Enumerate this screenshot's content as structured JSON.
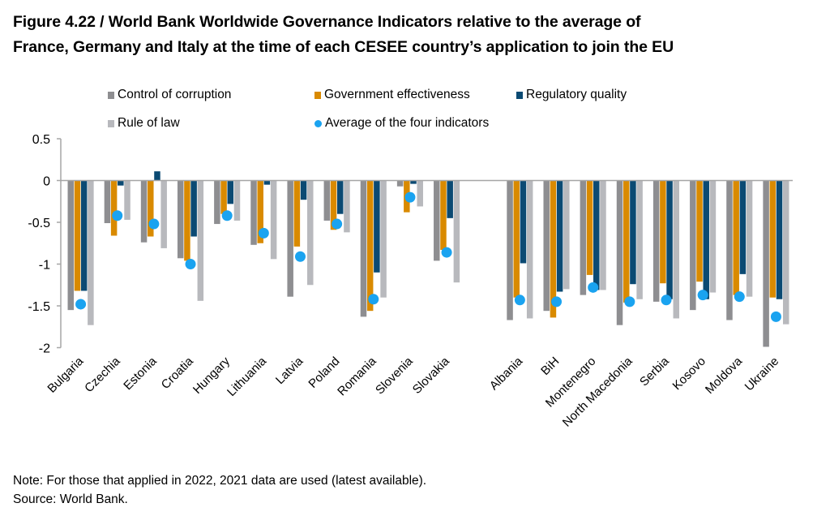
{
  "chart_data": {
    "type": "bar",
    "title": "Figure 4.22 / World Bank Worldwide Governance Indicators relative to the average of France, Germany and Italy at the time of each CESEE country’s application to join the EU",
    "title_lines": [
      "Figure 4.22 / World Bank Worldwide Governance Indicators relative to the average of",
      "France, Germany and Italy at the time of each CESEE country’s application to join the EU"
    ],
    "xlabel": "",
    "ylabel": "",
    "ylim": [
      -2,
      0.5
    ],
    "yticks": [
      0.5,
      0,
      -0.5,
      -1,
      -1.5,
      -2
    ],
    "ytick_labels": [
      "0.5",
      "0",
      "-0.5",
      "-1",
      "-1.5",
      "-2"
    ],
    "grid": false,
    "legend_position": "top",
    "categories": [
      "Bulgaria",
      "Czechia",
      "Estonia",
      "Croatia",
      "Hungary",
      "Lithuania",
      "Latvia",
      "Poland",
      "Romania",
      "Slovenia",
      "Slovakia",
      "",
      "Albania",
      "BiH",
      "Montenegro",
      "North Macedonia",
      "Serbia",
      "Kosovo",
      "Moldova",
      "Ukraine"
    ],
    "series": [
      {
        "name": "Control of corruption",
        "kind": "bar",
        "color": "#8e8e91",
        "values": [
          -1.55,
          -0.51,
          -0.74,
          -0.93,
          -0.52,
          -0.77,
          -1.39,
          -0.48,
          -1.63,
          -0.07,
          -0.96,
          null,
          -1.67,
          -1.56,
          -1.37,
          -1.73,
          -1.45,
          -1.55,
          -1.67,
          -1.99
        ]
      },
      {
        "name": "Government effectiveness",
        "kind": "bar",
        "color": "#d98a00",
        "values": [
          -1.32,
          -0.66,
          -0.67,
          -0.96,
          -0.4,
          -0.75,
          -0.79,
          -0.59,
          -1.56,
          -0.38,
          -0.83,
          null,
          -1.4,
          -1.64,
          -1.13,
          -1.46,
          -1.23,
          -1.21,
          -1.37,
          -1.4
        ]
      },
      {
        "name": "Regulatory quality",
        "kind": "bar",
        "color": "#0b4a73",
        "values": [
          -1.32,
          -0.06,
          0.11,
          -0.67,
          -0.28,
          -0.05,
          -0.23,
          -0.4,
          -1.1,
          -0.04,
          -0.45,
          null,
          -0.99,
          -1.33,
          -1.31,
          -1.24,
          -1.42,
          -1.42,
          -1.12,
          -1.42
        ]
      },
      {
        "name": "Rule of law",
        "kind": "bar",
        "color": "#b8b9bd",
        "values": [
          -1.73,
          -0.47,
          -0.81,
          -1.44,
          -0.48,
          -0.94,
          -1.25,
          -0.62,
          -1.4,
          -0.31,
          -1.22,
          null,
          -1.65,
          -1.3,
          -1.31,
          -1.42,
          -1.65,
          -1.34,
          -1.39,
          -1.72
        ]
      },
      {
        "name": "Average of the four indicators",
        "kind": "point",
        "color": "#1aa3f0",
        "values": [
          -1.48,
          -0.42,
          -0.52,
          -1.0,
          -0.42,
          -0.63,
          -0.91,
          -0.52,
          -1.42,
          -0.2,
          -0.86,
          null,
          -1.43,
          -1.45,
          -1.28,
          -1.45,
          -1.43,
          -1.37,
          -1.39,
          -1.63
        ]
      }
    ],
    "legend_rows": [
      [
        0,
        1,
        2
      ],
      [
        3,
        4
      ]
    ]
  },
  "footer": {
    "note": "Note: For those that applied in 2022, 2021 data are used (latest available).",
    "source": "Source: World Bank."
  }
}
